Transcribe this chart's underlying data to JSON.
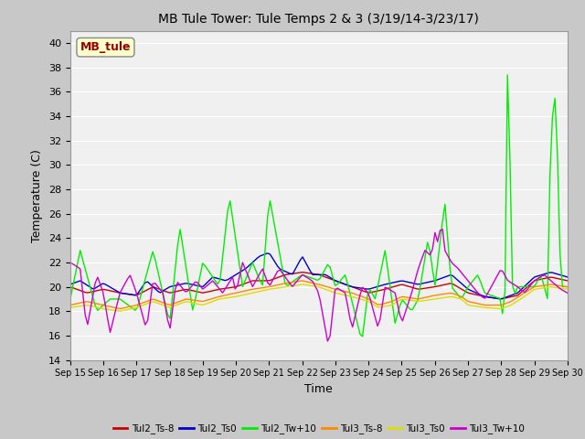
{
  "title": "MB Tule Tower: Tule Temps 2 & 3 (3/19/14-3/23/17)",
  "xlabel": "Time",
  "ylabel": "Temperature (C)",
  "ylim": [
    14,
    41
  ],
  "yticks": [
    14,
    16,
    18,
    20,
    22,
    24,
    26,
    28,
    30,
    32,
    34,
    36,
    38,
    40
  ],
  "legend_label": "MB_tule",
  "series_colors": {
    "Tul2_Ts-8": "#cc0000",
    "Tul2_Ts0": "#0000cc",
    "Tul2_Tw+10": "#00ee00",
    "Tul3_Ts-8": "#ff8800",
    "Tul3_Ts0": "#dddd00",
    "Tul3_Tw+10": "#cc00cc"
  },
  "fig_bg": "#c8c8c8",
  "plot_bg": "#f0f0f0",
  "grid_color": "#ffffff"
}
